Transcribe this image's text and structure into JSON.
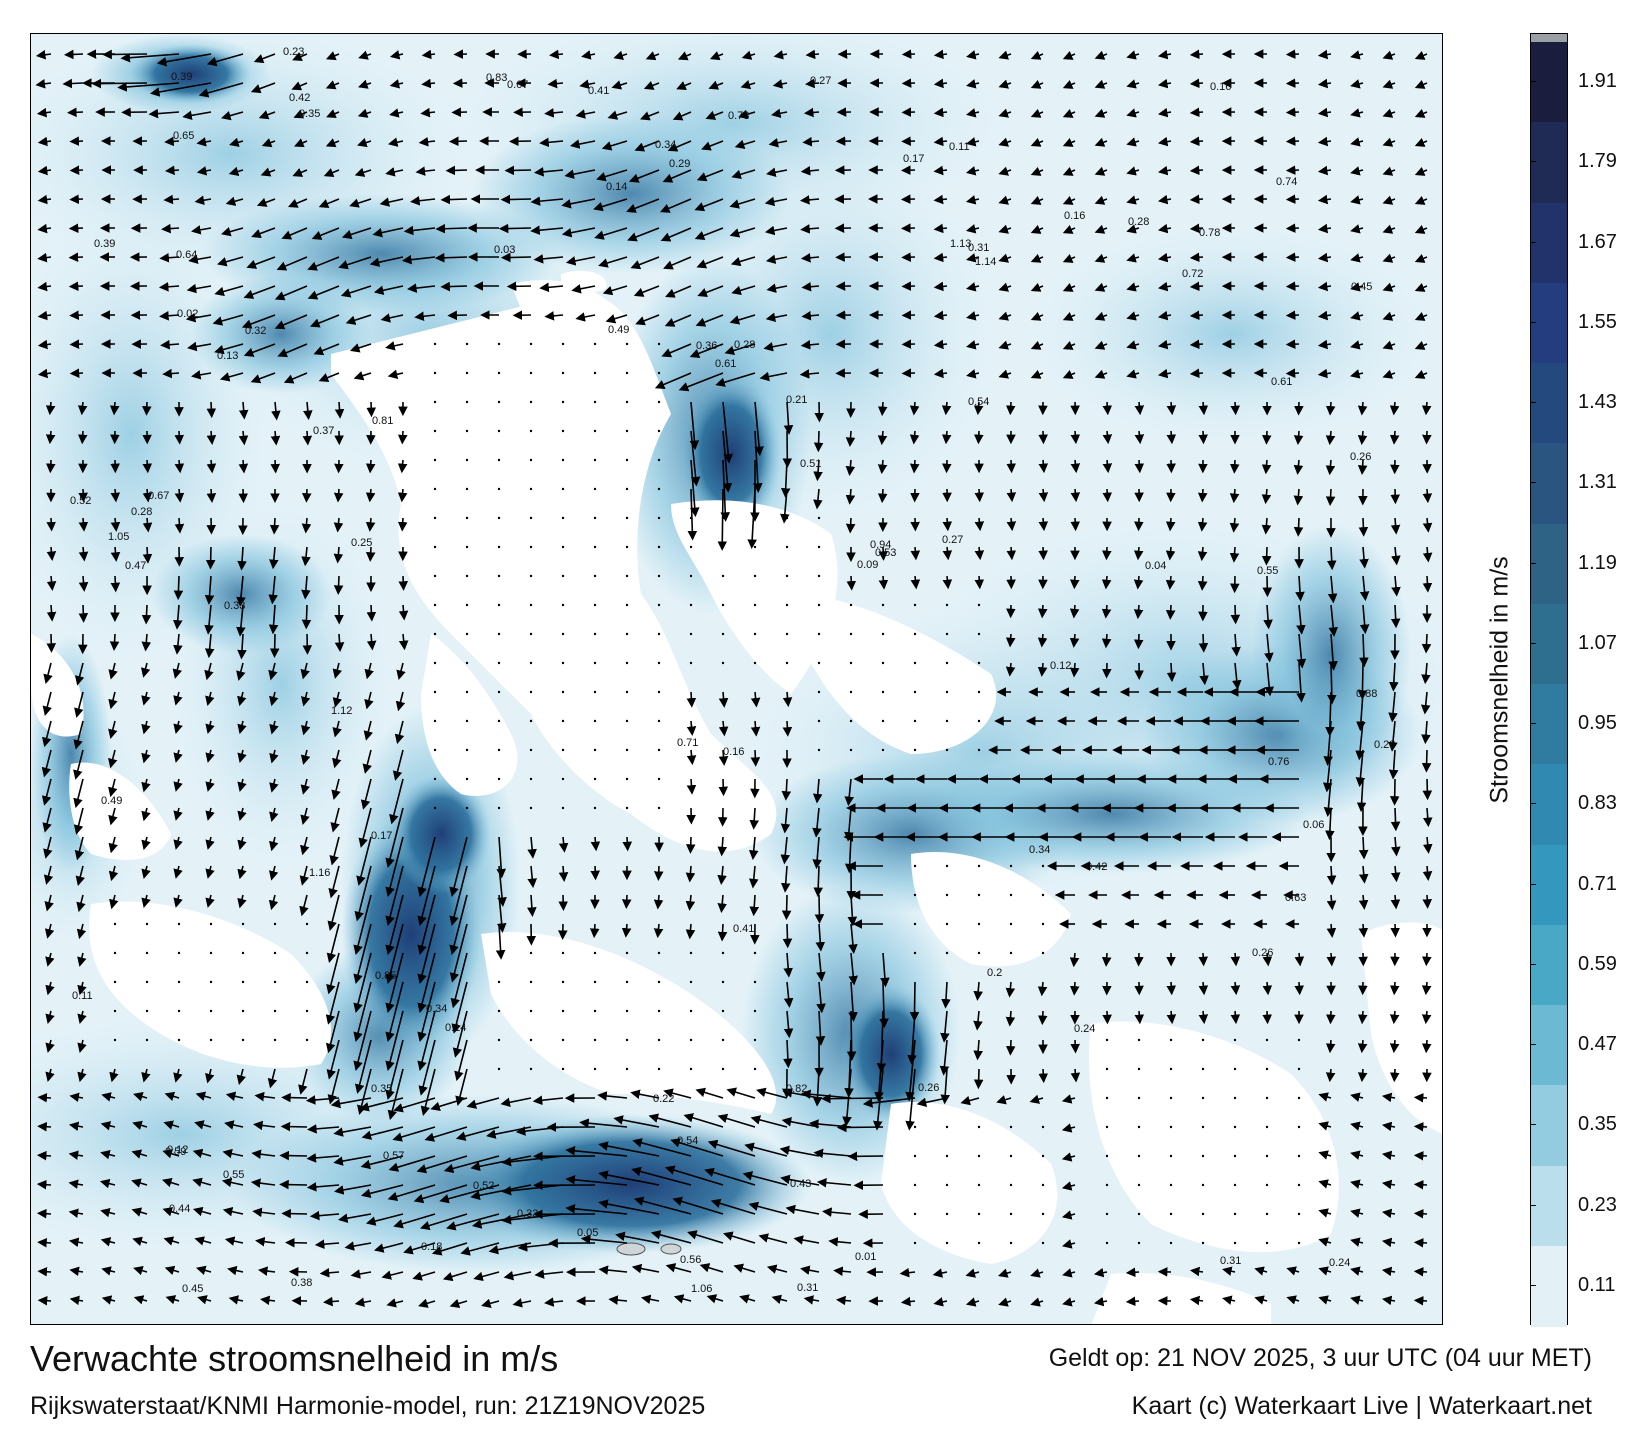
{
  "title": "Verwachte stroomsnelheid in m/s",
  "subtitle": "Rijkswaterstaat/KNMI Harmonie-model, run: 21Z19NOV2025",
  "valid_time": "Geldt op: 21 NOV 2025, 3 uur UTC (04 uur MET)",
  "credit": "Kaart (c) Waterkaart Live | Waterkaart.net",
  "colorbar": {
    "label": "Stroomsnelheid in m/s",
    "ticks": [
      "1.91",
      "1.79",
      "1.67",
      "1.55",
      "1.43",
      "1.31",
      "1.19",
      "1.07",
      "0.95",
      "0.83",
      "0.71",
      "0.59",
      "0.47",
      "0.35",
      "0.23",
      "0.11"
    ],
    "colors": [
      "#1a1d3d",
      "#1f2a55",
      "#22336b",
      "#243d7e",
      "#24497f",
      "#2a5581",
      "#2e6386",
      "#2e6f8f",
      "#2f7ca0",
      "#2f89b1",
      "#3497bd",
      "#4aa8c7",
      "#6bb9d2",
      "#93cbe0",
      "#bbdeec",
      "#e3f1f7"
    ]
  },
  "colors": {
    "land": "#ffffff",
    "water_low": "#e4f2f8",
    "water_mid": "#7fc1dc",
    "water_high": "#2b6f9c",
    "water_max": "#1f3f77",
    "arrow": "#000000"
  },
  "map": {
    "values": [
      {
        "label": "0.16"
      },
      {
        "label": "0.13"
      },
      {
        "label": "0.12"
      },
      {
        "label": "0.09"
      },
      {
        "label": "0.14"
      },
      {
        "label": "0.11"
      },
      {
        "label": "0.28"
      },
      {
        "label": "0.31"
      },
      {
        "label": "0.35"
      },
      {
        "label": "0.24"
      },
      {
        "label": "0.33"
      },
      {
        "label": "0.45"
      },
      {
        "label": "0.54"
      },
      {
        "label": "0.38"
      },
      {
        "label": "0.51"
      },
      {
        "label": "0.44"
      },
      {
        "label": "0.57"
      },
      {
        "label": "0.36"
      },
      {
        "label": "0.53"
      },
      {
        "label": "0.42"
      },
      {
        "label": "0.32"
      },
      {
        "label": "0.29"
      },
      {
        "label": "0.47"
      },
      {
        "label": "0.26"
      },
      {
        "label": "0.22"
      },
      {
        "label": "0.16"
      },
      {
        "label": "0.34"
      },
      {
        "label": "0.31"
      },
      {
        "label": "0.27"
      },
      {
        "label": "0.25"
      },
      {
        "label": "0.2"
      },
      {
        "label": "0.18"
      },
      {
        "label": "0.52"
      },
      {
        "label": "0.45"
      },
      {
        "label": "0.54"
      },
      {
        "label": "0.61"
      },
      {
        "label": "0.39"
      },
      {
        "label": "0.35"
      },
      {
        "label": "0.42"
      },
      {
        "label": "0.39"
      },
      {
        "label": "0.82"
      },
      {
        "label": "0.78"
      },
      {
        "label": "0.73"
      },
      {
        "label": "0.67"
      },
      {
        "label": "0.81"
      },
      {
        "label": "0.28"
      },
      {
        "label": "0.23"
      },
      {
        "label": "0.17"
      },
      {
        "label": "0.14"
      },
      {
        "label": "0.11"
      },
      {
        "label": "0.33"
      },
      {
        "label": "0.34"
      },
      {
        "label": "0.59"
      },
      {
        "label": "0.65"
      },
      {
        "label": "0.37"
      },
      {
        "label": "0.49"
      },
      {
        "label": "0.43"
      },
      {
        "label": "0.55"
      },
      {
        "label": "0.63"
      },
      {
        "label": "0.56"
      },
      {
        "label": "0.55"
      },
      {
        "label": "0.41"
      },
      {
        "label": "0.31"
      },
      {
        "label": "0.26"
      },
      {
        "label": "0.34"
      },
      {
        "label": "0.28"
      },
      {
        "label": "0.27"
      },
      {
        "label": "0.24"
      },
      {
        "label": "0.26"
      },
      {
        "label": "0.28"
      },
      {
        "label": "1.06"
      },
      {
        "label": "1.13"
      },
      {
        "label": "1.14"
      },
      {
        "label": "1.12"
      },
      {
        "label": "0.83"
      },
      {
        "label": "0.88"
      },
      {
        "label": "1.05"
      },
      {
        "label": "1.16"
      },
      {
        "label": "0.85"
      },
      {
        "label": "0.52"
      },
      {
        "label": "0.94"
      },
      {
        "label": "0.72"
      },
      {
        "label": "0.76"
      },
      {
        "label": "0.64"
      },
      {
        "label": "0.61"
      },
      {
        "label": "0.67"
      },
      {
        "label": "0.71"
      },
      {
        "label": "0.74"
      },
      {
        "label": "0.49"
      },
      {
        "label": "0.41"
      },
      {
        "label": "0.16"
      },
      {
        "label": "0.21"
      },
      {
        "label": "0.12"
      },
      {
        "label": "0.17"
      },
      {
        "label": "0.05"
      },
      {
        "label": "0.04"
      },
      {
        "label": "0.02"
      },
      {
        "label": "0.01"
      },
      {
        "label": "0.03"
      },
      {
        "label": "0.06"
      }
    ]
  }
}
